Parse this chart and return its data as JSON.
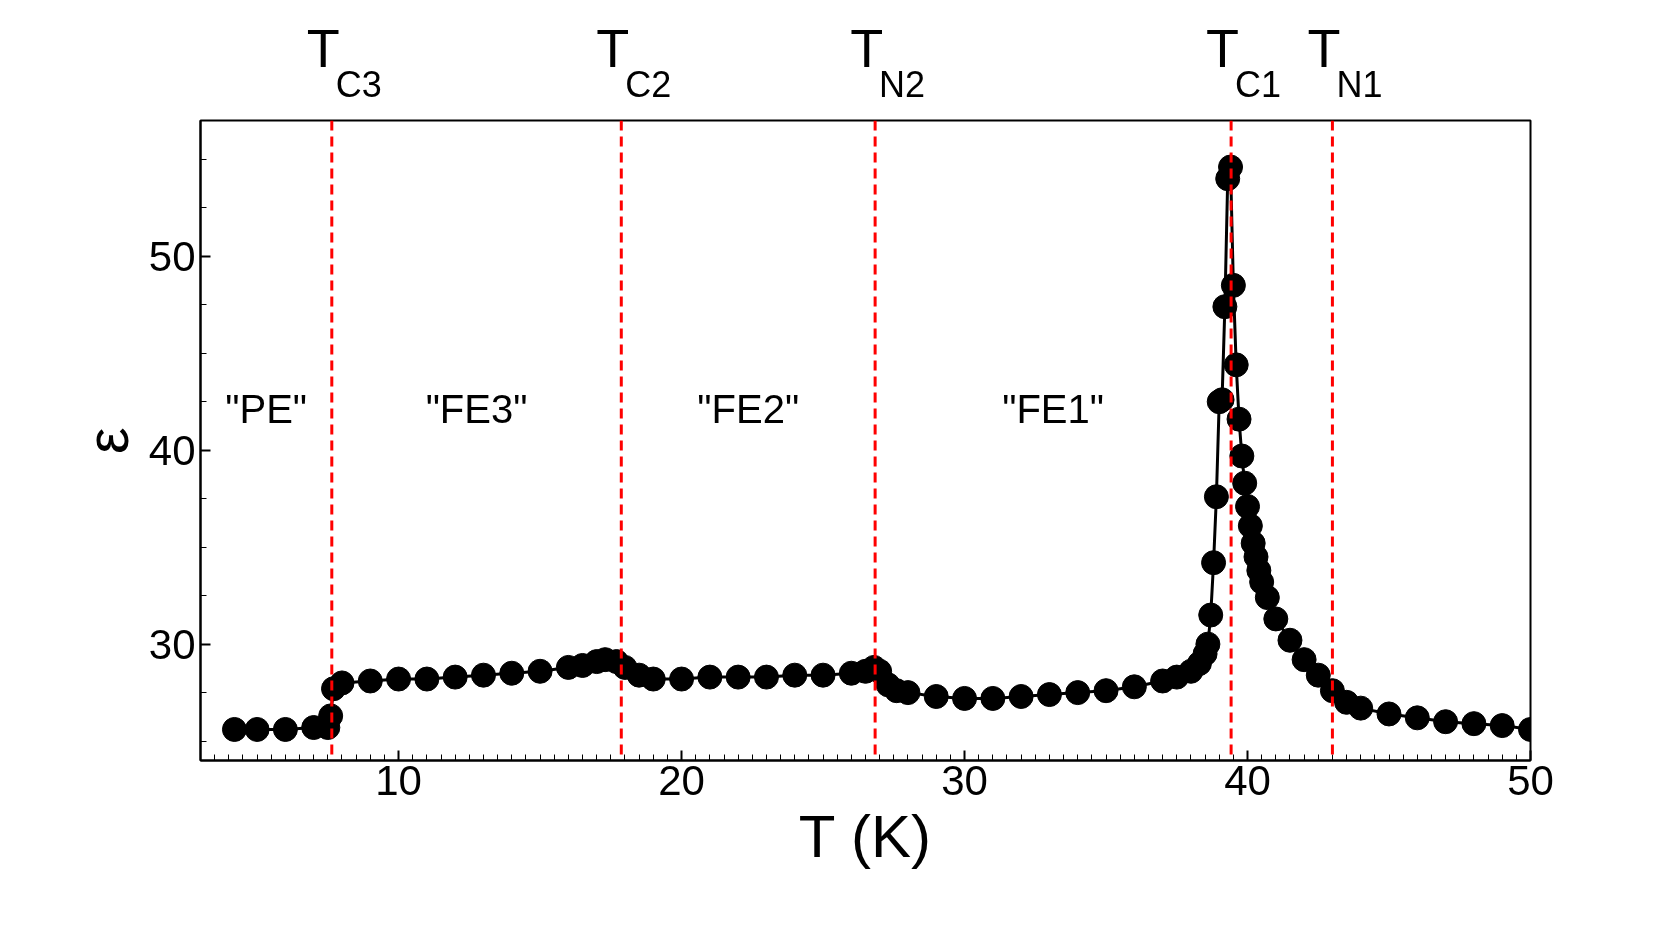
{
  "chart_data": {
    "type": "line",
    "xlabel": "T (K)",
    "ylabel": "ε",
    "xlim": [
      3,
      50
    ],
    "ylim": [
      24,
      57
    ],
    "xticks": [
      10,
      20,
      30,
      40,
      50
    ],
    "yticks": [
      30,
      40,
      50
    ],
    "marker": "circle",
    "line_style": "solid",
    "grid": false,
    "series": [
      {
        "color": "#000000",
        "x": [
          4.2,
          5,
          6,
          7,
          7.5,
          7.6,
          7.7,
          8,
          9,
          10,
          11,
          12,
          13,
          14,
          15,
          16,
          16.5,
          17,
          17.3,
          17.7,
          18,
          18.5,
          19,
          20,
          21,
          22,
          23,
          24,
          25,
          26,
          26.5,
          26.8,
          27,
          27.3,
          27.6,
          28,
          29,
          30,
          31,
          32,
          33,
          34,
          35,
          36,
          37,
          37.5,
          38,
          38.3,
          38.5,
          38.6,
          38.7,
          38.8,
          38.9,
          39.0,
          39.1,
          39.2,
          39.3,
          39.4,
          39.5,
          39.6,
          39.7,
          39.8,
          39.9,
          40.0,
          40.1,
          40.2,
          40.3,
          40.4,
          40.5,
          40.7,
          41,
          41.5,
          42,
          42.5,
          43,
          43.5,
          44,
          45,
          46,
          47,
          48,
          49,
          50
        ],
        "values": [
          25.6,
          25.6,
          25.6,
          25.7,
          25.7,
          26.3,
          27.7,
          28.0,
          28.1,
          28.2,
          28.2,
          28.3,
          28.4,
          28.5,
          28.6,
          28.8,
          28.9,
          29.1,
          29.2,
          29.1,
          28.8,
          28.4,
          28.2,
          28.2,
          28.3,
          28.3,
          28.3,
          28.4,
          28.4,
          28.5,
          28.6,
          28.8,
          28.6,
          27.9,
          27.6,
          27.5,
          27.3,
          27.2,
          27.2,
          27.3,
          27.4,
          27.5,
          27.6,
          27.8,
          28.1,
          28.3,
          28.6,
          29.0,
          29.5,
          30.0,
          31.5,
          34.2,
          37.6,
          42.5,
          42.6,
          47.4,
          54.0,
          54.6,
          48.5,
          44.4,
          41.6,
          39.7,
          38.3,
          37.1,
          36.1,
          35.2,
          34.5,
          33.8,
          33.2,
          32.4,
          31.3,
          30.2,
          29.2,
          28.4,
          27.6,
          27.0,
          26.7,
          26.4,
          26.2,
          26.0,
          25.9,
          25.8,
          25.6
        ]
      }
    ],
    "ref_lines": [
      {
        "axis": "x",
        "value": 7.64,
        "label": "T$_{C3}$",
        "color": "#ff0000",
        "line_style": "dashed"
      },
      {
        "axis": "x",
        "value": 17.87,
        "label": "T$_{C2}$",
        "color": "#ff0000",
        "line_style": "dashed"
      },
      {
        "axis": "x",
        "value": 26.84,
        "label": "T$_{N2}$",
        "color": "#ff0000",
        "line_style": "dashed"
      },
      {
        "axis": "x",
        "value": 39.42,
        "label": "T$_{C1}$",
        "color": "#ff0000",
        "line_style": "dashed"
      },
      {
        "axis": "x",
        "value": 43.0,
        "label": "T$_{N1}$",
        "color": "#ff0000",
        "line_style": "dashed"
      }
    ],
    "annotations": [
      "\"PE\"",
      "\"FE3\"",
      "\"FE2\"",
      "\"FE1\""
    ]
  }
}
